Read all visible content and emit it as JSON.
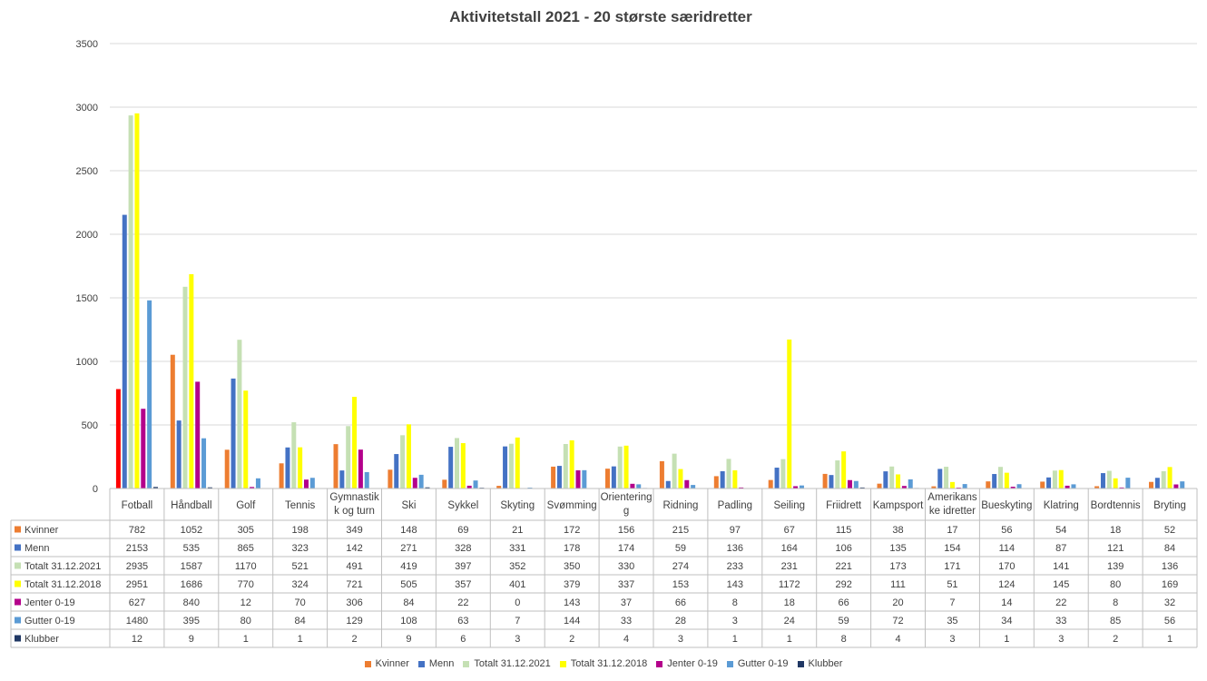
{
  "chart_data": {
    "type": "bar",
    "title": "Aktivitetstall 2021 - 20 største særidretter",
    "categories": [
      "Fotball",
      "Håndball",
      "Golf",
      "Tennis",
      "Gymnastikk og turn",
      "Ski",
      "Sykkel",
      "Skyting",
      "Svømming",
      "Orientering",
      "Ridning",
      "Padling",
      "Seiling",
      "Friidrett",
      "Kampsport",
      "Amerikanske idretter",
      "Bueskyting",
      "Klatring",
      "Bordtennis",
      "Bryting"
    ],
    "category_label_lines": [
      [
        "Fotball"
      ],
      [
        "Håndball"
      ],
      [
        "Golf"
      ],
      [
        "Tennis"
      ],
      [
        "Gymnastik",
        "k og turn"
      ],
      [
        "Ski"
      ],
      [
        "Sykkel"
      ],
      [
        "Skyting"
      ],
      [
        "Svømming"
      ],
      [
        "Orientering",
        "g"
      ],
      [
        "Ridning"
      ],
      [
        "Padling"
      ],
      [
        "Seiling"
      ],
      [
        "Friidrett"
      ],
      [
        "Kampsport"
      ],
      [
        "Amerikans",
        "ke idretter"
      ],
      [
        "Bueskyting"
      ],
      [
        "Klatring"
      ],
      [
        "Bordtennis"
      ],
      [
        "Bryting"
      ]
    ],
    "series": [
      {
        "name": "Kvinner",
        "color": "#ED7D31",
        "values": [
          782,
          1052,
          305,
          198,
          349,
          148,
          69,
          21,
          172,
          156,
          215,
          97,
          67,
          115,
          38,
          17,
          56,
          54,
          18,
          52
        ]
      },
      {
        "name": "Menn",
        "color": "#4472C4",
        "values": [
          2153,
          535,
          865,
          323,
          142,
          271,
          328,
          331,
          178,
          174,
          59,
          136,
          164,
          106,
          135,
          154,
          114,
          87,
          121,
          84
        ]
      },
      {
        "name": "Totalt 31.12.2021",
        "color": "#C5E0B4",
        "values": [
          2935,
          1587,
          1170,
          521,
          491,
          419,
          397,
          352,
          350,
          330,
          274,
          233,
          231,
          221,
          173,
          171,
          170,
          141,
          139,
          136
        ]
      },
      {
        "name": "Totalt 31.12.2018",
        "color": "#FFFF00",
        "values": [
          2951,
          1686,
          770,
          324,
          721,
          505,
          357,
          401,
          379,
          337,
          153,
          143,
          1172,
          292,
          111,
          51,
          124,
          145,
          80,
          169
        ]
      },
      {
        "name": "Jenter 0-19",
        "color": "#B4008B",
        "values": [
          627,
          840,
          12,
          70,
          306,
          84,
          22,
          0,
          143,
          37,
          66,
          8,
          18,
          66,
          20,
          7,
          14,
          22,
          8,
          32
        ]
      },
      {
        "name": "Gutter 0-19",
        "color": "#5B9BD5",
        "values": [
          1480,
          395,
          80,
          84,
          129,
          108,
          63,
          7,
          144,
          33,
          28,
          3,
          24,
          59,
          72,
          35,
          34,
          33,
          85,
          56
        ]
      },
      {
        "name": "Klubber",
        "color": "#203864",
        "values": [
          12,
          9,
          1,
          1,
          2,
          9,
          6,
          3,
          2,
          4,
          3,
          1,
          1,
          8,
          4,
          3,
          1,
          3,
          2,
          1
        ]
      }
    ],
    "highlight": {
      "series": "Kvinner",
      "category": "Fotball",
      "color": "#FF0000"
    },
    "ylim": [
      0,
      3500
    ],
    "yticks": [
      0,
      500,
      1000,
      1500,
      2000,
      2500,
      3000,
      3500
    ],
    "grid": true,
    "data_table": true,
    "legend_position": "bottom"
  }
}
